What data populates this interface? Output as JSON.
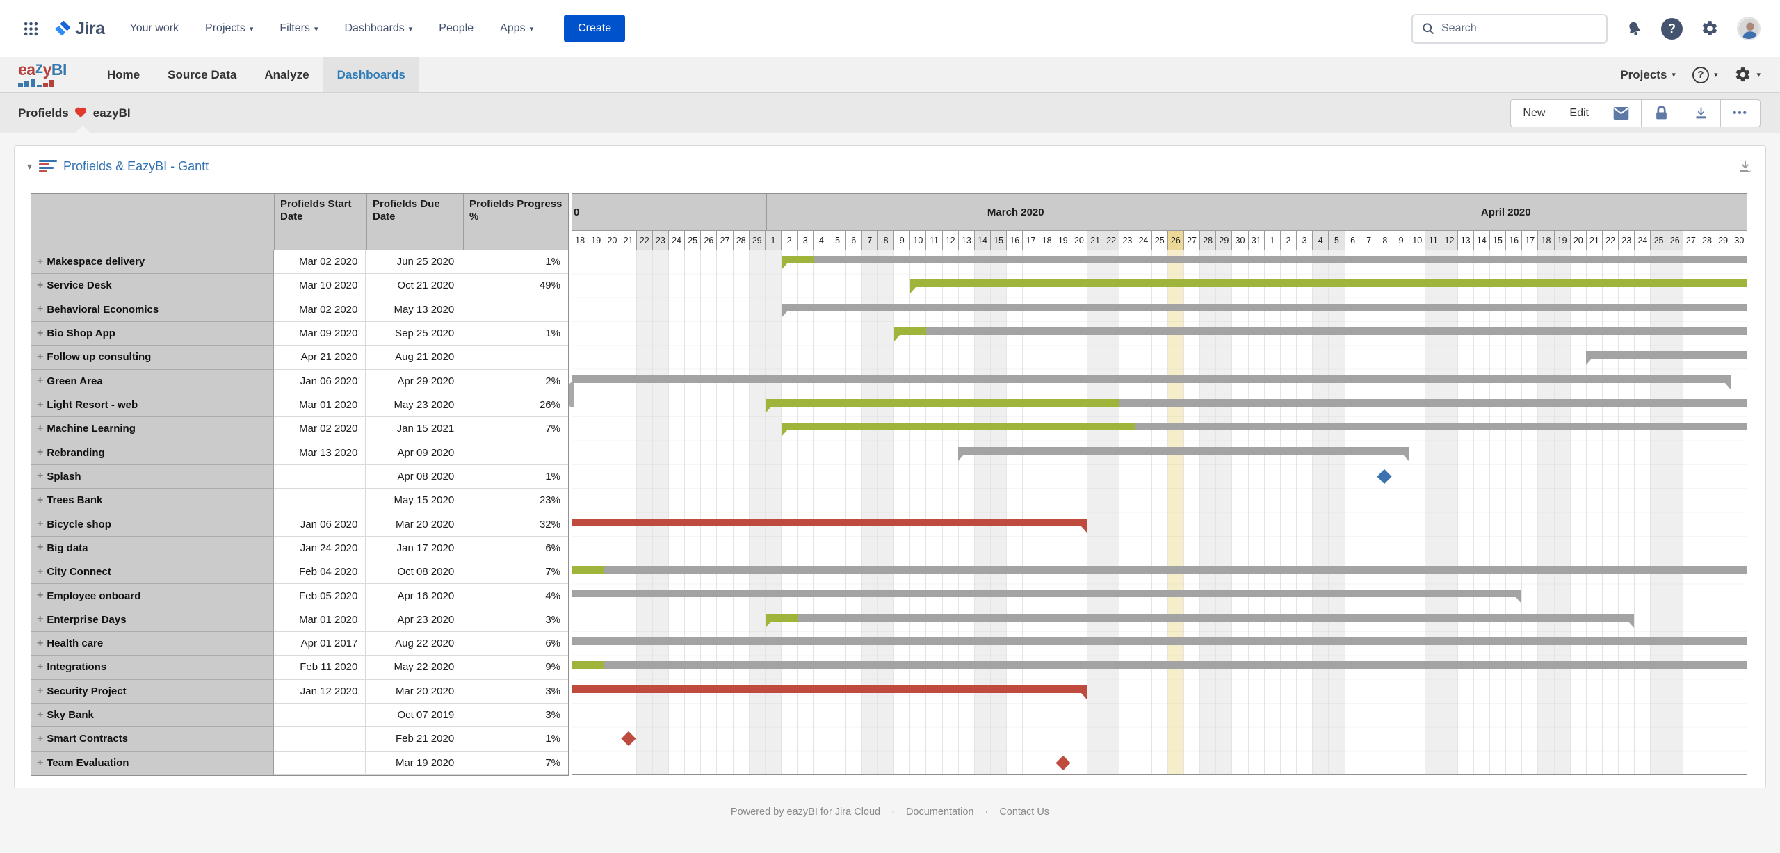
{
  "jira_nav": {
    "logo_text": "Jira",
    "items": [
      {
        "label": "Your work",
        "caret": false
      },
      {
        "label": "Projects",
        "caret": true
      },
      {
        "label": "Filters",
        "caret": true
      },
      {
        "label": "Dashboards",
        "caret": true
      },
      {
        "label": "People",
        "caret": false
      },
      {
        "label": "Apps",
        "caret": true
      }
    ],
    "create_label": "Create",
    "search_placeholder": "Search",
    "right_icons": [
      "bell-icon",
      "help-icon",
      "gear-icon",
      "avatar"
    ]
  },
  "eazybi_nav": {
    "logo_text": "eazyBI",
    "tabs": [
      {
        "label": "Home",
        "active": false
      },
      {
        "label": "Source Data",
        "active": false
      },
      {
        "label": "Analyze",
        "active": false
      },
      {
        "label": "Dashboards",
        "active": true
      }
    ],
    "projects_label": "Projects",
    "right_icons": [
      "help-icon",
      "gear-icon"
    ]
  },
  "dashboard_bar": {
    "tab_prefix": "Profields",
    "heart_icon": "red-heart",
    "tab_suffix": "eazyBI",
    "buttons": {
      "new_label": "New",
      "edit_label": "Edit",
      "icons": [
        "envelope-icon",
        "lock-icon",
        "download-icon",
        "ellipsis-icon"
      ]
    }
  },
  "panel": {
    "title": "Profields & EazyBI - Gantt"
  },
  "table": {
    "headers": [
      "Profields Start Date",
      "Profields Due Date",
      "Profields Progress %"
    ],
    "rows": [
      {
        "name": "Makespace delivery",
        "start": "Mar 02 2020",
        "due": "Jun 25 2020",
        "progress": "1%",
        "bar": {
          "s": 13,
          "e": 73,
          "segs": [
            {
              "c": "green",
              "d": 2
            },
            {
              "c": "gray"
            }
          ],
          "ns": true
        }
      },
      {
        "name": "Service Desk",
        "start": "Mar 10 2020",
        "due": "Oct 21 2020",
        "progress": "49%",
        "bar": {
          "s": 21,
          "e": 73,
          "segs": [
            {
              "c": "green"
            }
          ],
          "ns": true
        }
      },
      {
        "name": "Behavioral Economics",
        "start": "Mar 02 2020",
        "due": "May 13 2020",
        "progress": "",
        "bar": {
          "s": 13,
          "e": 73,
          "segs": [
            {
              "c": "gray"
            }
          ],
          "ns": true
        }
      },
      {
        "name": "Bio Shop App",
        "start": "Mar 09 2020",
        "due": "Sep 25 2020",
        "progress": "1%",
        "bar": {
          "s": 20,
          "e": 73,
          "segs": [
            {
              "c": "green",
              "d": 2
            },
            {
              "c": "gray"
            }
          ],
          "ns": true
        }
      },
      {
        "name": "Follow up consulting",
        "start": "Apr 21 2020",
        "due": "Aug 21 2020",
        "progress": "",
        "bar": {
          "s": 63,
          "e": 73,
          "segs": [
            {
              "c": "gray"
            }
          ],
          "ns": true
        }
      },
      {
        "name": "Green Area",
        "start": "Jan 06 2020",
        "due": "Apr 29 2020",
        "progress": "2%",
        "bar": {
          "s": 0,
          "e": 72,
          "segs": [
            {
              "c": "gray"
            }
          ],
          "ne": true
        }
      },
      {
        "name": "Light Resort - web",
        "start": "Mar 01 2020",
        "due": "May 23 2020",
        "progress": "26%",
        "bar": {
          "s": 12,
          "e": 73,
          "segs": [
            {
              "c": "green",
              "d": 22
            },
            {
              "c": "gray"
            }
          ],
          "ns": true
        }
      },
      {
        "name": "Machine Learning",
        "start": "Mar 02 2020",
        "due": "Jan 15 2021",
        "progress": "7%",
        "bar": {
          "s": 13,
          "e": 73,
          "segs": [
            {
              "c": "green",
              "d": 22
            },
            {
              "c": "gray"
            }
          ],
          "ns": true
        }
      },
      {
        "name": "Rebranding",
        "start": "Mar 13 2020",
        "due": "Apr 09 2020",
        "progress": "",
        "bar": {
          "s": 24,
          "e": 52,
          "segs": [
            {
              "c": "gray"
            }
          ],
          "ns": true,
          "ne": true
        }
      },
      {
        "name": "Splash",
        "start": "",
        "due": "Apr 08 2020",
        "progress": "1%",
        "diamond": {
          "day": 50,
          "c": "blue"
        }
      },
      {
        "name": "Trees Bank",
        "start": "",
        "due": "May 15 2020",
        "progress": "23%"
      },
      {
        "name": "Bicycle shop",
        "start": "Jan 06 2020",
        "due": "Mar 20 2020",
        "progress": "32%",
        "bar": {
          "s": 0,
          "e": 32,
          "segs": [
            {
              "c": "red"
            }
          ],
          "ne": true
        }
      },
      {
        "name": "Big data",
        "start": "Jan 24 2020",
        "due": "Jan 17 2020",
        "progress": "6%"
      },
      {
        "name": "City Connect",
        "start": "Feb 04 2020",
        "due": "Oct 08 2020",
        "progress": "7%",
        "bar": {
          "s": 0,
          "e": 73,
          "segs": [
            {
              "c": "green",
              "d": 2
            },
            {
              "c": "gray"
            }
          ]
        }
      },
      {
        "name": "Employee onboard",
        "start": "Feb 05 2020",
        "due": "Apr 16 2020",
        "progress": "4%",
        "bar": {
          "s": 0,
          "e": 59,
          "segs": [
            {
              "c": "gray"
            }
          ],
          "ne": true
        }
      },
      {
        "name": "Enterprise Days",
        "start": "Mar 01 2020",
        "due": "Apr 23 2020",
        "progress": "3%",
        "bar": {
          "s": 12,
          "e": 66,
          "segs": [
            {
              "c": "green",
              "d": 2
            },
            {
              "c": "gray"
            }
          ],
          "ns": true,
          "ne": true
        }
      },
      {
        "name": "Health care",
        "start": "Apr 01 2017",
        "due": "Aug 22 2020",
        "progress": "6%",
        "bar": {
          "s": 0,
          "e": 73,
          "segs": [
            {
              "c": "gray"
            }
          ]
        }
      },
      {
        "name": "Integrations",
        "start": "Feb 11 2020",
        "due": "May 22 2020",
        "progress": "9%",
        "bar": {
          "s": 0,
          "e": 73,
          "segs": [
            {
              "c": "green",
              "d": 2
            },
            {
              "c": "gray"
            }
          ]
        }
      },
      {
        "name": "Security Project",
        "start": "Jan 12 2020",
        "due": "Mar 20 2020",
        "progress": "3%",
        "bar": {
          "s": 0,
          "e": 32,
          "segs": [
            {
              "c": "red"
            }
          ],
          "ne": true
        }
      },
      {
        "name": "Sky Bank",
        "start": "",
        "due": "Oct 07 2019",
        "progress": "3%"
      },
      {
        "name": "Smart Contracts",
        "start": "",
        "due": "Feb 21 2020",
        "progress": "1%",
        "diamond": {
          "day": 3,
          "c": "red"
        }
      },
      {
        "name": "Team Evaluation",
        "start": "",
        "due": "Mar 19 2020",
        "progress": "7%",
        "diamond": {
          "day": 30,
          "c": "red"
        }
      }
    ]
  },
  "gantt": {
    "total_days": 73,
    "today_day": 37,
    "weekend_days": [
      4,
      5,
      11,
      12,
      18,
      19,
      25,
      26,
      32,
      33,
      39,
      40,
      46,
      47,
      53,
      54,
      60,
      61,
      67,
      68
    ],
    "months": [
      {
        "label": "0",
        "days": [
          18,
          19,
          20,
          21,
          22,
          23,
          24,
          25,
          26,
          27,
          28,
          29
        ]
      },
      {
        "label": "March 2020",
        "days": [
          1,
          2,
          3,
          4,
          5,
          6,
          7,
          8,
          9,
          10,
          11,
          12,
          13,
          14,
          15,
          16,
          17,
          18,
          19,
          20,
          21,
          22,
          23,
          24,
          25,
          26,
          27,
          28,
          29,
          30,
          31
        ]
      },
      {
        "label": "April 2020",
        "days": [
          1,
          2,
          3,
          4,
          5,
          6,
          7,
          8,
          9,
          10,
          11,
          12,
          13,
          14,
          15,
          16,
          17,
          18,
          19,
          20,
          21,
          22,
          23,
          24,
          25,
          26,
          27,
          28,
          29,
          30
        ]
      }
    ],
    "colors": {
      "green": "#9FB43A",
      "gray": "#A3A3A3",
      "red": "#BE4B3D",
      "blue": "#3B72AF"
    }
  },
  "footer": {
    "powered": "Powered by eazyBI for Jira Cloud",
    "dot": "·",
    "documentation": "Documentation",
    "contact": "Contact Us"
  }
}
